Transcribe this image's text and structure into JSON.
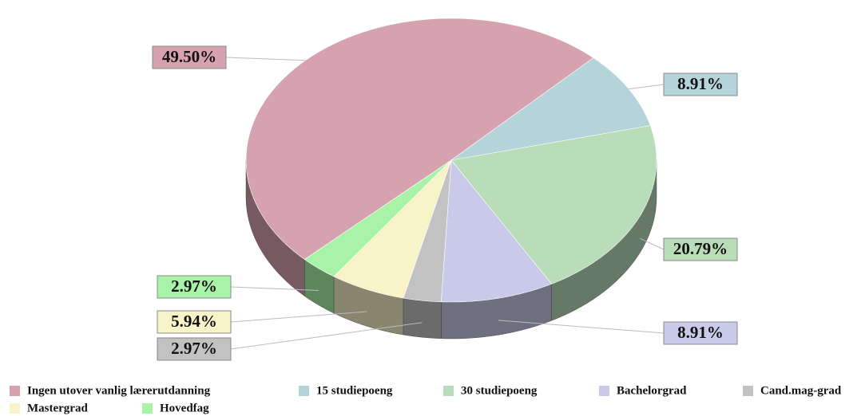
{
  "chart_data": {
    "type": "pie",
    "categories": [
      "Ingen utover vanlig lærerutdanning",
      "15 studiepoeng",
      "30 studiepoeng",
      "Bachelorgrad",
      "Cand.mag-grad",
      "Mastergrad",
      "Hovedfag"
    ],
    "values": [
      49.5,
      8.91,
      20.79,
      8.91,
      2.97,
      5.94,
      2.97
    ],
    "value_labels": [
      "49.50%",
      "8.91%",
      "20.79%",
      "8.91%",
      "2.97%",
      "5.94%",
      "2.97%"
    ],
    "colors": [
      "#d6a2b0",
      "#b4d4da",
      "#b9dcb9",
      "#c9c9e9",
      "#c2c2c2",
      "#f8f3c9",
      "#a9f3a9"
    ],
    "legend": "bottom"
  }
}
